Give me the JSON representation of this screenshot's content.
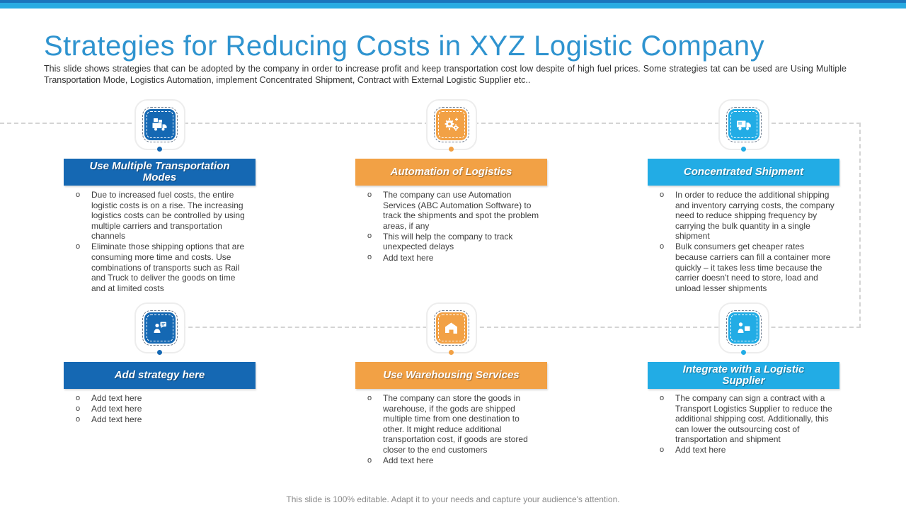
{
  "slide": {
    "title": "Strategies for Reducing Costs in XYZ Logistic Company",
    "subtitle": "This slide shows strategies that can be adopted by the company in order to increase profit and keep transportation cost low despite of high fuel prices. Some strategies tat can be used are Using Multiple Transportation  Mode, Logistics Automation, implement Concentrated Shipment, Contract with External Logistic Supplier etc..",
    "footer": "This slide is 100% editable. Adapt it to your needs and capture your audience's attention."
  },
  "colors": {
    "topbar_dark": "#1B75BC",
    "topbar_cyan": "#29ABE2",
    "title_blue": "#2E93CF",
    "dashed_line": "#D4D4D4",
    "body_text": "#3F3F3F"
  },
  "strategies": [
    {
      "title": "Use Multiple Transportation Modes",
      "color": "#1568B3",
      "icon": "transport-modes-trucks-icon",
      "bullets": [
        "Due to  increased fuel costs, the entire logistic costs is on a rise. The increasing logistics costs can be controlled by using multiple carriers and transportation channels",
        "Eliminate those shipping options that are consuming more time and costs. Use combinations of transports such as Rail and Truck to deliver the goods on time and at limited costs"
      ]
    },
    {
      "title": "Automation of Logistics",
      "color": "#F2A145",
      "icon": "automation-gears-icon",
      "bullets": [
        "The company can use Automation Services (ABC Automation Software) to track the shipments and spot the problem areas, if any",
        "This will help the company to track unexpected delays",
        "Add text here"
      ]
    },
    {
      "title": "Concentrated Shipment",
      "color": "#22ACE5",
      "icon": "shipment-truck-icon",
      "bullets": [
        "In order to reduce the additional shipping and inventory carrying costs, the company need to reduce shipping frequency by carrying the bulk quantity in a single shipment",
        "Bulk consumers get cheaper rates because carriers can fill a container more quickly – it takes less time because the carrier doesn't need to store, load and unload lesser shipments"
      ]
    },
    {
      "title": "Add strategy here",
      "color": "#1568B3",
      "icon": "person-chat-icon",
      "bullets": [
        "Add text here",
        "Add text here",
        "Add text here"
      ]
    },
    {
      "title": "Use Warehousing Services",
      "color": "#F2A145",
      "icon": "warehouse-icon",
      "bullets": [
        "The company can store the goods in warehouse, if the gods are shipped multiple time from one destination to other. It might reduce additional transportation cost, if goods are stored closer to the end customers",
        "Add text here"
      ]
    },
    {
      "title": "Integrate with a Logistic Supplier",
      "color": "#22ACE5",
      "icon": "person-box-supplier-icon",
      "bullets": [
        "The company can sign a contract with a Transport Logistics Supplier to reduce the additional shipping cost. Additionally, this can lower the outsourcing cost of transportation and shipment",
        "Add text here"
      ]
    }
  ]
}
